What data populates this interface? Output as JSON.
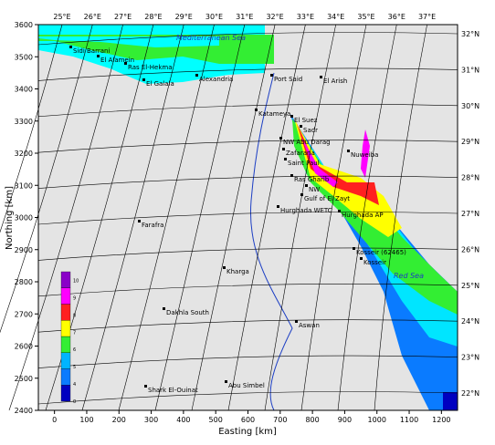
{
  "axes": {
    "x": {
      "label": "Easting [km]",
      "range": [
        -50,
        1250
      ],
      "ticks": [
        0,
        100,
        200,
        300,
        400,
        500,
        600,
        700,
        800,
        900,
        1000,
        1100,
        1200
      ]
    },
    "y": {
      "label": "Northing [km]",
      "range": [
        2400,
        3600
      ],
      "ticks": [
        2400,
        2500,
        2600,
        2700,
        2800,
        2900,
        3000,
        3100,
        3200,
        3300,
        3400,
        3500,
        3600
      ]
    }
  },
  "longitudes": [
    "25°E",
    "26°E",
    "27°E",
    "28°E",
    "29°E",
    "30°E",
    "31°E",
    "32°E",
    "33°E",
    "34°E",
    "35°E",
    "36°E",
    "37°E"
  ],
  "latitudes": [
    "32°N",
    "31°N",
    "30°N",
    "29°N",
    "28°N",
    "27°N",
    "26°N",
    "25°N",
    "24°N",
    "23°N",
    "22°N"
  ],
  "colorbar": {
    "ticks": [
      0,
      4,
      5,
      6,
      7,
      8,
      9,
      10
    ],
    "colors": [
      "#0000c0",
      "#0a7bff",
      "#00b4ff",
      "#33ee33",
      "#ffff00",
      "#ff2020",
      "#ff00ff",
      "#8a00c8"
    ]
  },
  "places": [
    "Sidi Barrani",
    "El Alamein",
    "Ras El-Hekma",
    "El Galala",
    "Alexandria",
    "Port Said",
    "El Arish",
    "Katameya",
    "El Suez",
    "Sadr",
    "NW Abu Darag",
    "Zafarana",
    "Saint Paul",
    "Nuweiba",
    "Ras Gharib",
    "NW",
    "Gulf of El Zayt",
    "Hurghada WETC",
    "Hurghada AP",
    "Farafra",
    "Kosseir (62465)",
    "Kosseir",
    "Kharga",
    "Dakhla South",
    "Aswan",
    "Shark El-Ouinat",
    "Abu Simbel"
  ],
  "seas": [
    "Mediterranean Sea",
    "Red Sea"
  ]
}
